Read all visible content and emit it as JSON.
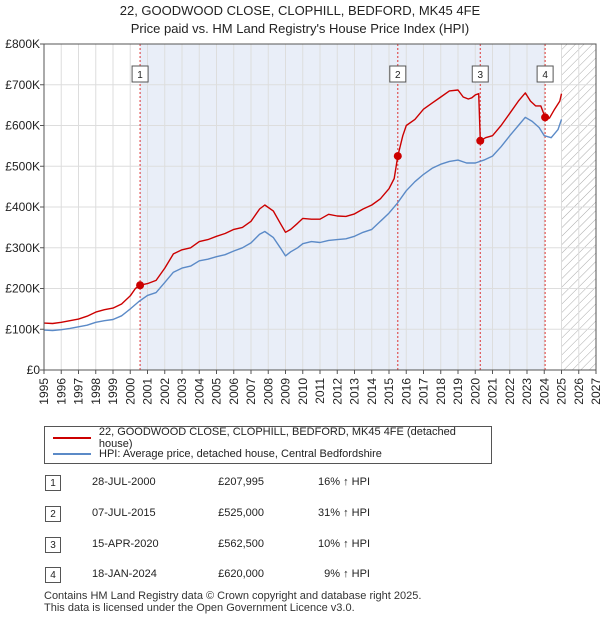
{
  "title_line1": "22, GOODWOOD CLOSE, CLOPHILL, BEDFORD, MK45 4FE",
  "title_line2": "Price paid vs. HM Land Registry's House Price Index (HPI)",
  "colors": {
    "property": "#cc0000",
    "hpi": "#5b8ac7",
    "vline": "#dd3333",
    "grid": "#dddddd",
    "highlight": "#e9eef8",
    "axis": "#555555"
  },
  "chart_data": {
    "type": "line",
    "xlim": [
      1995,
      2027
    ],
    "ylim": [
      0,
      800000
    ],
    "x_ticks": [
      "1995",
      "1996",
      "1997",
      "1998",
      "1999",
      "2000",
      "2001",
      "2002",
      "2003",
      "2004",
      "2005",
      "2006",
      "2007",
      "2008",
      "2009",
      "2010",
      "2011",
      "2012",
      "2013",
      "2014",
      "2015",
      "2016",
      "2017",
      "2018",
      "2019",
      "2020",
      "2021",
      "2022",
      "2023",
      "2024",
      "2025",
      "2026",
      "2027"
    ],
    "y_ticks": [
      {
        "value": 0,
        "label": "£0"
      },
      {
        "value": 100000,
        "label": "£100K"
      },
      {
        "value": 200000,
        "label": "£200K"
      },
      {
        "value": 300000,
        "label": "£300K"
      },
      {
        "value": 400000,
        "label": "£400K"
      },
      {
        "value": 500000,
        "label": "£500K"
      },
      {
        "value": 600000,
        "label": "£600K"
      },
      {
        "value": 700000,
        "label": "£700K"
      },
      {
        "value": 800000,
        "label": "£800K"
      }
    ],
    "highlight_range": [
      2000.57,
      2024.05
    ],
    "future_hatch_from": 2025.0,
    "series": [
      {
        "name": "22, GOODWOOD CLOSE, CLOPHILL, BEDFORD, MK45 4FE (detached house)",
        "color": "#cc0000",
        "x": [
          1995.0,
          1995.5,
          1996.0,
          1996.5,
          1997.0,
          1997.5,
          1998.0,
          1998.5,
          1999.0,
          1999.5,
          2000.0,
          2000.3,
          2000.57,
          2001.0,
          2001.5,
          2002.0,
          2002.5,
          2003.0,
          2003.5,
          2004.0,
          2004.5,
          2005.0,
          2005.5,
          2006.0,
          2006.5,
          2007.0,
          2007.5,
          2007.8,
          2008.3,
          2008.7,
          2009.0,
          2009.3,
          2009.7,
          2010.0,
          2010.5,
          2011.0,
          2011.5,
          2012.0,
          2012.5,
          2013.0,
          2013.5,
          2014.0,
          2014.5,
          2015.0,
          2015.3,
          2015.51,
          2015.8,
          2016.0,
          2016.5,
          2017.0,
          2017.5,
          2018.0,
          2018.5,
          2019.0,
          2019.3,
          2019.6,
          2019.8,
          2020.0,
          2020.2,
          2020.29,
          2020.6,
          2021.0,
          2021.5,
          2022.0,
          2022.5,
          2022.9,
          2023.2,
          2023.5,
          2023.8,
          2024.05,
          2024.3,
          2024.6,
          2024.9,
          2025.0
        ],
        "values": [
          115000,
          114000,
          117000,
          121000,
          125000,
          132000,
          142000,
          148000,
          152000,
          162000,
          182000,
          200000,
          207995,
          212000,
          220000,
          250000,
          285000,
          295000,
          300000,
          315000,
          320000,
          328000,
          335000,
          345000,
          350000,
          365000,
          395000,
          405000,
          390000,
          360000,
          338000,
          345000,
          360000,
          372000,
          370000,
          370000,
          382000,
          378000,
          377000,
          383000,
          395000,
          405000,
          420000,
          445000,
          470000,
          525000,
          575000,
          600000,
          615000,
          640000,
          655000,
          670000,
          685000,
          687000,
          670000,
          665000,
          668000,
          675000,
          678000,
          562500,
          570000,
          575000,
          600000,
          630000,
          660000,
          680000,
          660000,
          648000,
          648000,
          620000,
          618000,
          640000,
          660000,
          678000
        ]
      },
      {
        "name": "HPI: Average price, detached house, Central Bedfordshire",
        "color": "#5b8ac7",
        "x": [
          1995.0,
          1995.5,
          1996.0,
          1996.5,
          1997.0,
          1997.5,
          1998.0,
          1998.5,
          1999.0,
          1999.5,
          2000.0,
          2000.5,
          2001.0,
          2001.5,
          2002.0,
          2002.5,
          2003.0,
          2003.5,
          2004.0,
          2004.5,
          2005.0,
          2005.5,
          2006.0,
          2006.5,
          2007.0,
          2007.5,
          2007.8,
          2008.3,
          2008.7,
          2009.0,
          2009.3,
          2009.7,
          2010.0,
          2010.5,
          2011.0,
          2011.5,
          2012.0,
          2012.5,
          2013.0,
          2013.5,
          2014.0,
          2014.5,
          2015.0,
          2015.5,
          2016.0,
          2016.5,
          2017.0,
          2017.5,
          2018.0,
          2018.5,
          2019.0,
          2019.5,
          2020.0,
          2020.5,
          2021.0,
          2021.5,
          2022.0,
          2022.5,
          2022.9,
          2023.3,
          2023.7,
          2024.0,
          2024.4,
          2024.8,
          2025.0
        ],
        "values": [
          98000,
          97000,
          99000,
          102000,
          106000,
          110000,
          117000,
          121000,
          124000,
          133000,
          150000,
          168000,
          183000,
          190000,
          215000,
          240000,
          250000,
          255000,
          268000,
          272000,
          278000,
          283000,
          292000,
          300000,
          312000,
          333000,
          340000,
          325000,
          300000,
          280000,
          290000,
          300000,
          310000,
          315000,
          313000,
          318000,
          320000,
          322000,
          328000,
          338000,
          345000,
          365000,
          385000,
          410000,
          440000,
          462000,
          480000,
          495000,
          505000,
          512000,
          515000,
          508000,
          508000,
          515000,
          525000,
          548000,
          575000,
          600000,
          620000,
          610000,
          595000,
          575000,
          570000,
          590000,
          615000
        ]
      }
    ],
    "sales": [
      {
        "num": "1",
        "x": 2000.57,
        "value": 207995
      },
      {
        "num": "2",
        "x": 2015.51,
        "value": 525000
      },
      {
        "num": "3",
        "x": 2020.29,
        "value": 562500
      },
      {
        "num": "4",
        "x": 2024.05,
        "value": 620000
      }
    ]
  },
  "legend": {
    "property": "22, GOODWOOD CLOSE, CLOPHILL, BEDFORD, MK45 4FE (detached house)",
    "hpi": "HPI: Average price, detached house, Central Bedfordshire"
  },
  "transactions": [
    {
      "num": "1",
      "date": "28-JUL-2000",
      "price": "£207,995",
      "hpi": "16% ↑ HPI"
    },
    {
      "num": "2",
      "date": "07-JUL-2015",
      "price": "£525,000",
      "hpi": "31% ↑ HPI"
    },
    {
      "num": "3",
      "date": "15-APR-2020",
      "price": "£562,500",
      "hpi": "10% ↑ HPI"
    },
    {
      "num": "4",
      "date": "18-JAN-2024",
      "price": "£620,000",
      "hpi": "9% ↑ HPI"
    }
  ],
  "footer": {
    "line1": "Contains HM Land Registry data © Crown copyright and database right 2025.",
    "line2": "This data is licensed under the Open Government Licence v3.0."
  }
}
